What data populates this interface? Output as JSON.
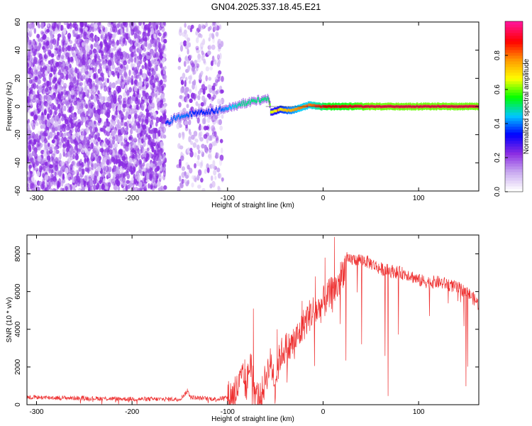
{
  "title": "GN04.2025.337.18.45.E21",
  "chart_data": [
    {
      "type": "heatmap",
      "xlabel": "Height of straight line (km)",
      "ylabel": "Frequency (Hz)",
      "xlim": [
        -310,
        163
      ],
      "ylim": [
        -60,
        60
      ],
      "xticks": [
        -300,
        -200,
        -100,
        0,
        100
      ],
      "yticks": [
        -60,
        -40,
        -20,
        0,
        20,
        40,
        60
      ],
      "colorbar": {
        "label": "Normalized spectral amplitude",
        "range": [
          0,
          1
        ],
        "ticks": [
          0.0,
          0.2,
          0.4,
          0.6,
          0.8
        ],
        "colors": [
          "#ffffff",
          "#c8a8f0",
          "#8a2be2",
          "#0000ff",
          "#00c8ff",
          "#00ff00",
          "#ffff00",
          "#ff9900",
          "#ff0000",
          "#ff1493"
        ]
      },
      "regions": [
        {
          "name": "noise",
          "x": [
            -310,
            -165
          ],
          "y": [
            -60,
            60
          ],
          "amplitude": [
            0.05,
            0.2
          ]
        },
        {
          "name": "noise-sparse",
          "x": [
            -152,
            -105
          ],
          "y": [
            -60,
            60
          ],
          "amplitude": [
            0.05,
            0.15
          ]
        }
      ],
      "ridge": {
        "x": [
          -165,
          -155,
          -145,
          -135,
          -125,
          -115,
          -105,
          -95,
          -85,
          -75,
          -65,
          -58,
          -55,
          -45,
          -35,
          -25,
          -15,
          -5,
          5,
          20,
          50,
          100,
          163
        ],
        "y": [
          -12,
          -8,
          -6,
          -5,
          -4,
          -3,
          -2,
          0,
          2,
          3,
          5,
          6,
          -4,
          -2,
          -3,
          -1,
          1,
          0,
          0,
          0,
          0,
          0,
          0
        ],
        "amplitude": [
          0.35,
          0.4,
          0.4,
          0.35,
          0.35,
          0.35,
          0.4,
          0.45,
          0.5,
          0.5,
          0.5,
          0.5,
          0.65,
          0.7,
          0.75,
          0.8,
          0.8,
          0.85,
          0.9,
          0.9,
          0.95,
          0.95,
          0.95
        ]
      }
    },
    {
      "type": "line",
      "xlabel": "Height of straight line (km)",
      "ylabel": "SNR (10 * v/v)",
      "xlim": [
        -310,
        163
      ],
      "ylim": [
        0,
        9000
      ],
      "xticks": [
        -300,
        -200,
        -100,
        0,
        100
      ],
      "yticks": [
        0,
        2000,
        4000,
        6000,
        8000
      ],
      "series": [
        {
          "color": "#ee3030",
          "x": [
            -310,
            -290,
            -270,
            -250,
            -230,
            -210,
            -190,
            -170,
            -150,
            -142,
            -138,
            -130,
            -110,
            -100,
            -92,
            -85,
            -80,
            -76,
            -72,
            -68,
            -65,
            -60,
            -55,
            -50,
            -45,
            -40,
            -35,
            -30,
            -25,
            -20,
            -15,
            -10,
            -5,
            0,
            5,
            10,
            15,
            20,
            25,
            30,
            40,
            50,
            60,
            70,
            80,
            90,
            100,
            110,
            120,
            130,
            140,
            150,
            160,
            163
          ],
          "y": [
            400,
            380,
            360,
            350,
            330,
            310,
            300,
            290,
            300,
            700,
            400,
            350,
            300,
            400,
            600,
            1400,
            1000,
            2500,
            700,
            400,
            300,
            1500,
            2200,
            1300,
            2600,
            3000,
            3000,
            3400,
            3700,
            4300,
            4700,
            5000,
            5000,
            5400,
            5700,
            6000,
            6300,
            7000,
            7600,
            7700,
            7700,
            7500,
            7200,
            7100,
            7000,
            6900,
            6600,
            6500,
            6500,
            6400,
            6200,
            6000,
            5500,
            5300
          ],
          "spikes": [
            [
              -142,
              850
            ],
            [
              -92,
              1500
            ],
            [
              -82,
              2400
            ],
            [
              -73,
              5100
            ],
            [
              -48,
              4000
            ],
            [
              -22,
              5500
            ],
            [
              -8,
              6800
            ],
            [
              2,
              7800
            ],
            [
              12,
              8900
            ],
            [
              28,
              7900
            ]
          ]
        }
      ]
    }
  ]
}
